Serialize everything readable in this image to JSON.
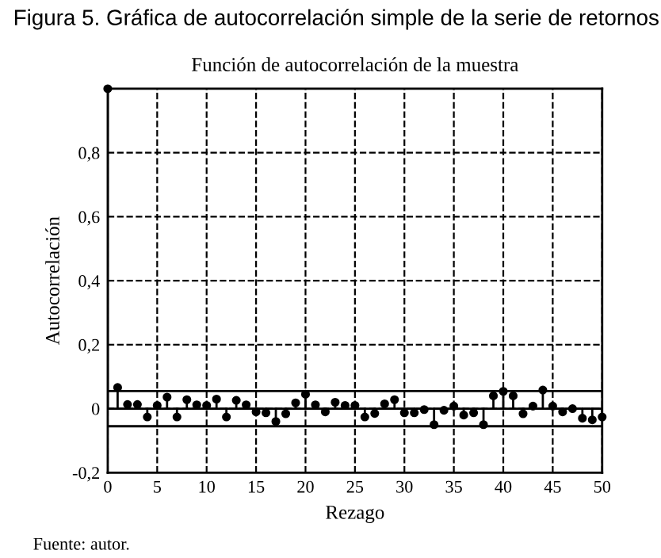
{
  "chart_data": {
    "type": "lollipop",
    "title": "Figura 5. Gráfica de autocorrelación simple de la serie de retornos",
    "subtitle": "Función de autocorrelación de la muestra",
    "xlabel": "Rezago",
    "ylabel": "Autocorrelación",
    "annotations": [
      "Fuente: autor."
    ],
    "x": [
      0,
      1,
      2,
      3,
      4,
      5,
      6,
      7,
      8,
      9,
      10,
      11,
      12,
      13,
      14,
      15,
      16,
      17,
      18,
      19,
      20,
      21,
      22,
      23,
      24,
      25,
      26,
      27,
      28,
      29,
      30,
      31,
      32,
      33,
      34,
      35,
      36,
      37,
      38,
      39,
      40,
      41,
      42,
      43,
      44,
      45,
      46,
      47,
      48,
      49,
      50
    ],
    "values": [
      1,
      0.066,
      0.013,
      0.013,
      -0.026,
      0.01,
      0.036,
      -0.026,
      0.028,
      0.012,
      0.01,
      0.03,
      -0.026,
      0.026,
      0.012,
      -0.01,
      -0.013,
      -0.04,
      -0.016,
      0.018,
      0.045,
      0.012,
      -0.01,
      0.02,
      0.01,
      0.01,
      -0.026,
      -0.015,
      0.015,
      0.028,
      -0.013,
      -0.013,
      -0.003,
      -0.05,
      -0.005,
      0.008,
      -0.02,
      -0.013,
      -0.05,
      0.04,
      0.054,
      0.04,
      -0.016,
      0.008,
      0.058,
      0.008,
      -0.01,
      0,
      -0.03,
      -0.035,
      -0.026
    ],
    "color": "#000000",
    "marker": "circle",
    "xlim": [
      0,
      50
    ],
    "ylim": [
      -0.2,
      1
    ],
    "xticks": [
      0,
      5,
      10,
      15,
      20,
      25,
      30,
      35,
      40,
      45,
      50
    ],
    "yticks": [
      {
        "value": -0.2,
        "label": "-0,2"
      },
      0,
      {
        "value": 0.2,
        "label": "0,2"
      },
      {
        "value": 0.4,
        "label": "0,4"
      },
      {
        "value": 0.6,
        "label": "0,6"
      },
      {
        "value": 0.8,
        "label": "0,8"
      }
    ],
    "ref_lines": [
      {
        "axis": "y",
        "value": 0.055,
        "color": "#000000",
        "line_style": "solid"
      },
      {
        "axis": "y",
        "value": -0.055,
        "color": "#000000",
        "line_style": "solid"
      }
    ],
    "grid": true,
    "legend": false
  }
}
